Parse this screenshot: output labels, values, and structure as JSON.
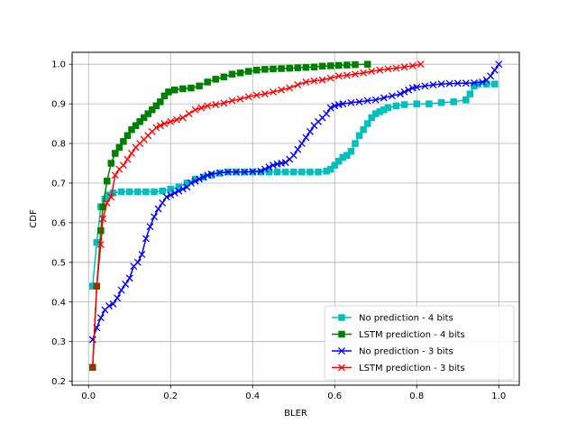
{
  "chart_data": {
    "type": "line",
    "xlabel": "BLER",
    "ylabel": "CDF",
    "xlim": [
      -0.04,
      1.05
    ],
    "ylim": [
      0.19,
      1.03
    ],
    "xticks": [
      0.0,
      0.2,
      0.4,
      0.6,
      0.8,
      1.0
    ],
    "xtick_labels": [
      "0.0",
      "0.2",
      "0.4",
      "0.6",
      "0.8",
      "1.0"
    ],
    "yticks": [
      0.2,
      0.3,
      0.4,
      0.5,
      0.6,
      0.7,
      0.8,
      0.9,
      1.0
    ],
    "ytick_labels": [
      "0.2",
      "0.3",
      "0.4",
      "0.5",
      "0.6",
      "0.7",
      "0.8",
      "0.9",
      "1.0"
    ],
    "grid": true,
    "legend_position": "lower-right",
    "series": [
      {
        "name": "No prediction - 4 bits",
        "color": "#00bfbf",
        "marker": "square",
        "points": [
          [
            0.01,
            0.44
          ],
          [
            0.02,
            0.55
          ],
          [
            0.03,
            0.64
          ],
          [
            0.04,
            0.66
          ],
          [
            0.05,
            0.67
          ],
          [
            0.06,
            0.675
          ],
          [
            0.08,
            0.678
          ],
          [
            0.1,
            0.678
          ],
          [
            0.12,
            0.678
          ],
          [
            0.14,
            0.678
          ],
          [
            0.16,
            0.678
          ],
          [
            0.18,
            0.68
          ],
          [
            0.2,
            0.685
          ],
          [
            0.22,
            0.69
          ],
          [
            0.24,
            0.7
          ],
          [
            0.26,
            0.71
          ],
          [
            0.28,
            0.715
          ],
          [
            0.3,
            0.72
          ],
          [
            0.32,
            0.725
          ],
          [
            0.34,
            0.728
          ],
          [
            0.36,
            0.728
          ],
          [
            0.38,
            0.728
          ],
          [
            0.4,
            0.728
          ],
          [
            0.42,
            0.728
          ],
          [
            0.44,
            0.728
          ],
          [
            0.46,
            0.728
          ],
          [
            0.48,
            0.728
          ],
          [
            0.5,
            0.728
          ],
          [
            0.52,
            0.728
          ],
          [
            0.54,
            0.728
          ],
          [
            0.56,
            0.728
          ],
          [
            0.58,
            0.73
          ],
          [
            0.59,
            0.735
          ],
          [
            0.6,
            0.745
          ],
          [
            0.61,
            0.755
          ],
          [
            0.62,
            0.765
          ],
          [
            0.63,
            0.77
          ],
          [
            0.64,
            0.78
          ],
          [
            0.65,
            0.8
          ],
          [
            0.66,
            0.82
          ],
          [
            0.67,
            0.835
          ],
          [
            0.68,
            0.85
          ],
          [
            0.69,
            0.865
          ],
          [
            0.7,
            0.875
          ],
          [
            0.71,
            0.88
          ],
          [
            0.72,
            0.885
          ],
          [
            0.73,
            0.89
          ],
          [
            0.75,
            0.895
          ],
          [
            0.77,
            0.898
          ],
          [
            0.8,
            0.9
          ],
          [
            0.83,
            0.9
          ],
          [
            0.86,
            0.903
          ],
          [
            0.89,
            0.905
          ],
          [
            0.92,
            0.91
          ],
          [
            0.93,
            0.925
          ],
          [
            0.94,
            0.945
          ],
          [
            0.95,
            0.95
          ],
          [
            0.97,
            0.95
          ],
          [
            0.99,
            0.95
          ]
        ]
      },
      {
        "name": "LSTM prediction - 4 bits",
        "color": "#008000",
        "marker": "square",
        "points": [
          [
            0.01,
            0.235
          ],
          [
            0.02,
            0.44
          ],
          [
            0.03,
            0.58
          ],
          [
            0.035,
            0.64
          ],
          [
            0.045,
            0.705
          ],
          [
            0.055,
            0.75
          ],
          [
            0.065,
            0.775
          ],
          [
            0.075,
            0.79
          ],
          [
            0.085,
            0.805
          ],
          [
            0.095,
            0.82
          ],
          [
            0.105,
            0.835
          ],
          [
            0.115,
            0.845
          ],
          [
            0.125,
            0.855
          ],
          [
            0.135,
            0.865
          ],
          [
            0.145,
            0.875
          ],
          [
            0.155,
            0.885
          ],
          [
            0.165,
            0.895
          ],
          [
            0.175,
            0.905
          ],
          [
            0.185,
            0.92
          ],
          [
            0.195,
            0.93
          ],
          [
            0.21,
            0.935
          ],
          [
            0.23,
            0.938
          ],
          [
            0.25,
            0.94
          ],
          [
            0.27,
            0.945
          ],
          [
            0.29,
            0.955
          ],
          [
            0.31,
            0.962
          ],
          [
            0.33,
            0.968
          ],
          [
            0.35,
            0.975
          ],
          [
            0.37,
            0.978
          ],
          [
            0.39,
            0.982
          ],
          [
            0.41,
            0.985
          ],
          [
            0.43,
            0.987
          ],
          [
            0.45,
            0.988
          ],
          [
            0.47,
            0.989
          ],
          [
            0.49,
            0.99
          ],
          [
            0.51,
            0.991
          ],
          [
            0.53,
            0.992
          ],
          [
            0.55,
            0.993
          ],
          [
            0.57,
            0.995
          ],
          [
            0.59,
            0.996
          ],
          [
            0.61,
            0.997
          ],
          [
            0.63,
            0.998
          ],
          [
            0.65,
            0.999
          ],
          [
            0.68,
            1.0
          ]
        ]
      },
      {
        "name": "No prediction - 3 bits",
        "color": "#0000ff",
        "marker": "x",
        "points": [
          [
            0.01,
            0.305
          ],
          [
            0.02,
            0.335
          ],
          [
            0.03,
            0.36
          ],
          [
            0.04,
            0.38
          ],
          [
            0.05,
            0.39
          ],
          [
            0.06,
            0.395
          ],
          [
            0.07,
            0.41
          ],
          [
            0.08,
            0.43
          ],
          [
            0.09,
            0.445
          ],
          [
            0.1,
            0.46
          ],
          [
            0.11,
            0.49
          ],
          [
            0.12,
            0.5
          ],
          [
            0.13,
            0.52
          ],
          [
            0.14,
            0.56
          ],
          [
            0.15,
            0.59
          ],
          [
            0.16,
            0.615
          ],
          [
            0.17,
            0.635
          ],
          [
            0.18,
            0.65
          ],
          [
            0.19,
            0.665
          ],
          [
            0.2,
            0.67
          ],
          [
            0.21,
            0.675
          ],
          [
            0.22,
            0.68
          ],
          [
            0.23,
            0.685
          ],
          [
            0.24,
            0.69
          ],
          [
            0.25,
            0.7
          ],
          [
            0.26,
            0.705
          ],
          [
            0.27,
            0.71
          ],
          [
            0.28,
            0.715
          ],
          [
            0.29,
            0.72
          ],
          [
            0.3,
            0.723
          ],
          [
            0.32,
            0.726
          ],
          [
            0.34,
            0.728
          ],
          [
            0.36,
            0.728
          ],
          [
            0.38,
            0.728
          ],
          [
            0.4,
            0.729
          ],
          [
            0.42,
            0.73
          ],
          [
            0.43,
            0.735
          ],
          [
            0.44,
            0.74
          ],
          [
            0.45,
            0.745
          ],
          [
            0.46,
            0.748
          ],
          [
            0.47,
            0.75
          ],
          [
            0.48,
            0.752
          ],
          [
            0.49,
            0.76
          ],
          [
            0.5,
            0.77
          ],
          [
            0.51,
            0.785
          ],
          [
            0.52,
            0.8
          ],
          [
            0.53,
            0.815
          ],
          [
            0.54,
            0.83
          ],
          [
            0.55,
            0.845
          ],
          [
            0.56,
            0.855
          ],
          [
            0.57,
            0.865
          ],
          [
            0.58,
            0.875
          ],
          [
            0.59,
            0.89
          ],
          [
            0.6,
            0.895
          ],
          [
            0.61,
            0.898
          ],
          [
            0.62,
            0.9
          ],
          [
            0.64,
            0.903
          ],
          [
            0.66,
            0.905
          ],
          [
            0.68,
            0.908
          ],
          [
            0.7,
            0.91
          ],
          [
            0.72,
            0.915
          ],
          [
            0.74,
            0.92
          ],
          [
            0.76,
            0.925
          ],
          [
            0.77,
            0.93
          ],
          [
            0.78,
            0.935
          ],
          [
            0.79,
            0.94
          ],
          [
            0.8,
            0.942
          ],
          [
            0.82,
            0.945
          ],
          [
            0.84,
            0.948
          ],
          [
            0.86,
            0.95
          ],
          [
            0.88,
            0.951
          ],
          [
            0.9,
            0.952
          ],
          [
            0.92,
            0.952
          ],
          [
            0.94,
            0.953
          ],
          [
            0.96,
            0.955
          ],
          [
            0.97,
            0.96
          ],
          [
            0.98,
            0.97
          ],
          [
            0.99,
            0.985
          ],
          [
            1.0,
            1.0
          ]
        ]
      },
      {
        "name": "LSTM prediction - 3 bits",
        "color": "#ff0000",
        "marker": "x",
        "points": [
          [
            0.01,
            0.235
          ],
          [
            0.02,
            0.44
          ],
          [
            0.03,
            0.545
          ],
          [
            0.035,
            0.61
          ],
          [
            0.045,
            0.65
          ],
          [
            0.055,
            0.665
          ],
          [
            0.065,
            0.72
          ],
          [
            0.075,
            0.735
          ],
          [
            0.085,
            0.745
          ],
          [
            0.095,
            0.76
          ],
          [
            0.105,
            0.775
          ],
          [
            0.115,
            0.79
          ],
          [
            0.125,
            0.8
          ],
          [
            0.135,
            0.81
          ],
          [
            0.145,
            0.82
          ],
          [
            0.155,
            0.83
          ],
          [
            0.165,
            0.84
          ],
          [
            0.175,
            0.845
          ],
          [
            0.185,
            0.85
          ],
          [
            0.2,
            0.855
          ],
          [
            0.215,
            0.86
          ],
          [
            0.23,
            0.865
          ],
          [
            0.245,
            0.875
          ],
          [
            0.26,
            0.885
          ],
          [
            0.275,
            0.89
          ],
          [
            0.29,
            0.895
          ],
          [
            0.31,
            0.898
          ],
          [
            0.33,
            0.902
          ],
          [
            0.35,
            0.908
          ],
          [
            0.37,
            0.912
          ],
          [
            0.39,
            0.918
          ],
          [
            0.41,
            0.922
          ],
          [
            0.43,
            0.925
          ],
          [
            0.45,
            0.93
          ],
          [
            0.47,
            0.935
          ],
          [
            0.49,
            0.94
          ],
          [
            0.51,
            0.948
          ],
          [
            0.53,
            0.955
          ],
          [
            0.55,
            0.958
          ],
          [
            0.57,
            0.96
          ],
          [
            0.59,
            0.965
          ],
          [
            0.61,
            0.97
          ],
          [
            0.63,
            0.972
          ],
          [
            0.65,
            0.975
          ],
          [
            0.67,
            0.978
          ],
          [
            0.69,
            0.982
          ],
          [
            0.71,
            0.985
          ],
          [
            0.73,
            0.988
          ],
          [
            0.75,
            0.99
          ],
          [
            0.77,
            0.993
          ],
          [
            0.79,
            0.996
          ],
          [
            0.81,
            1.0
          ]
        ]
      }
    ]
  }
}
